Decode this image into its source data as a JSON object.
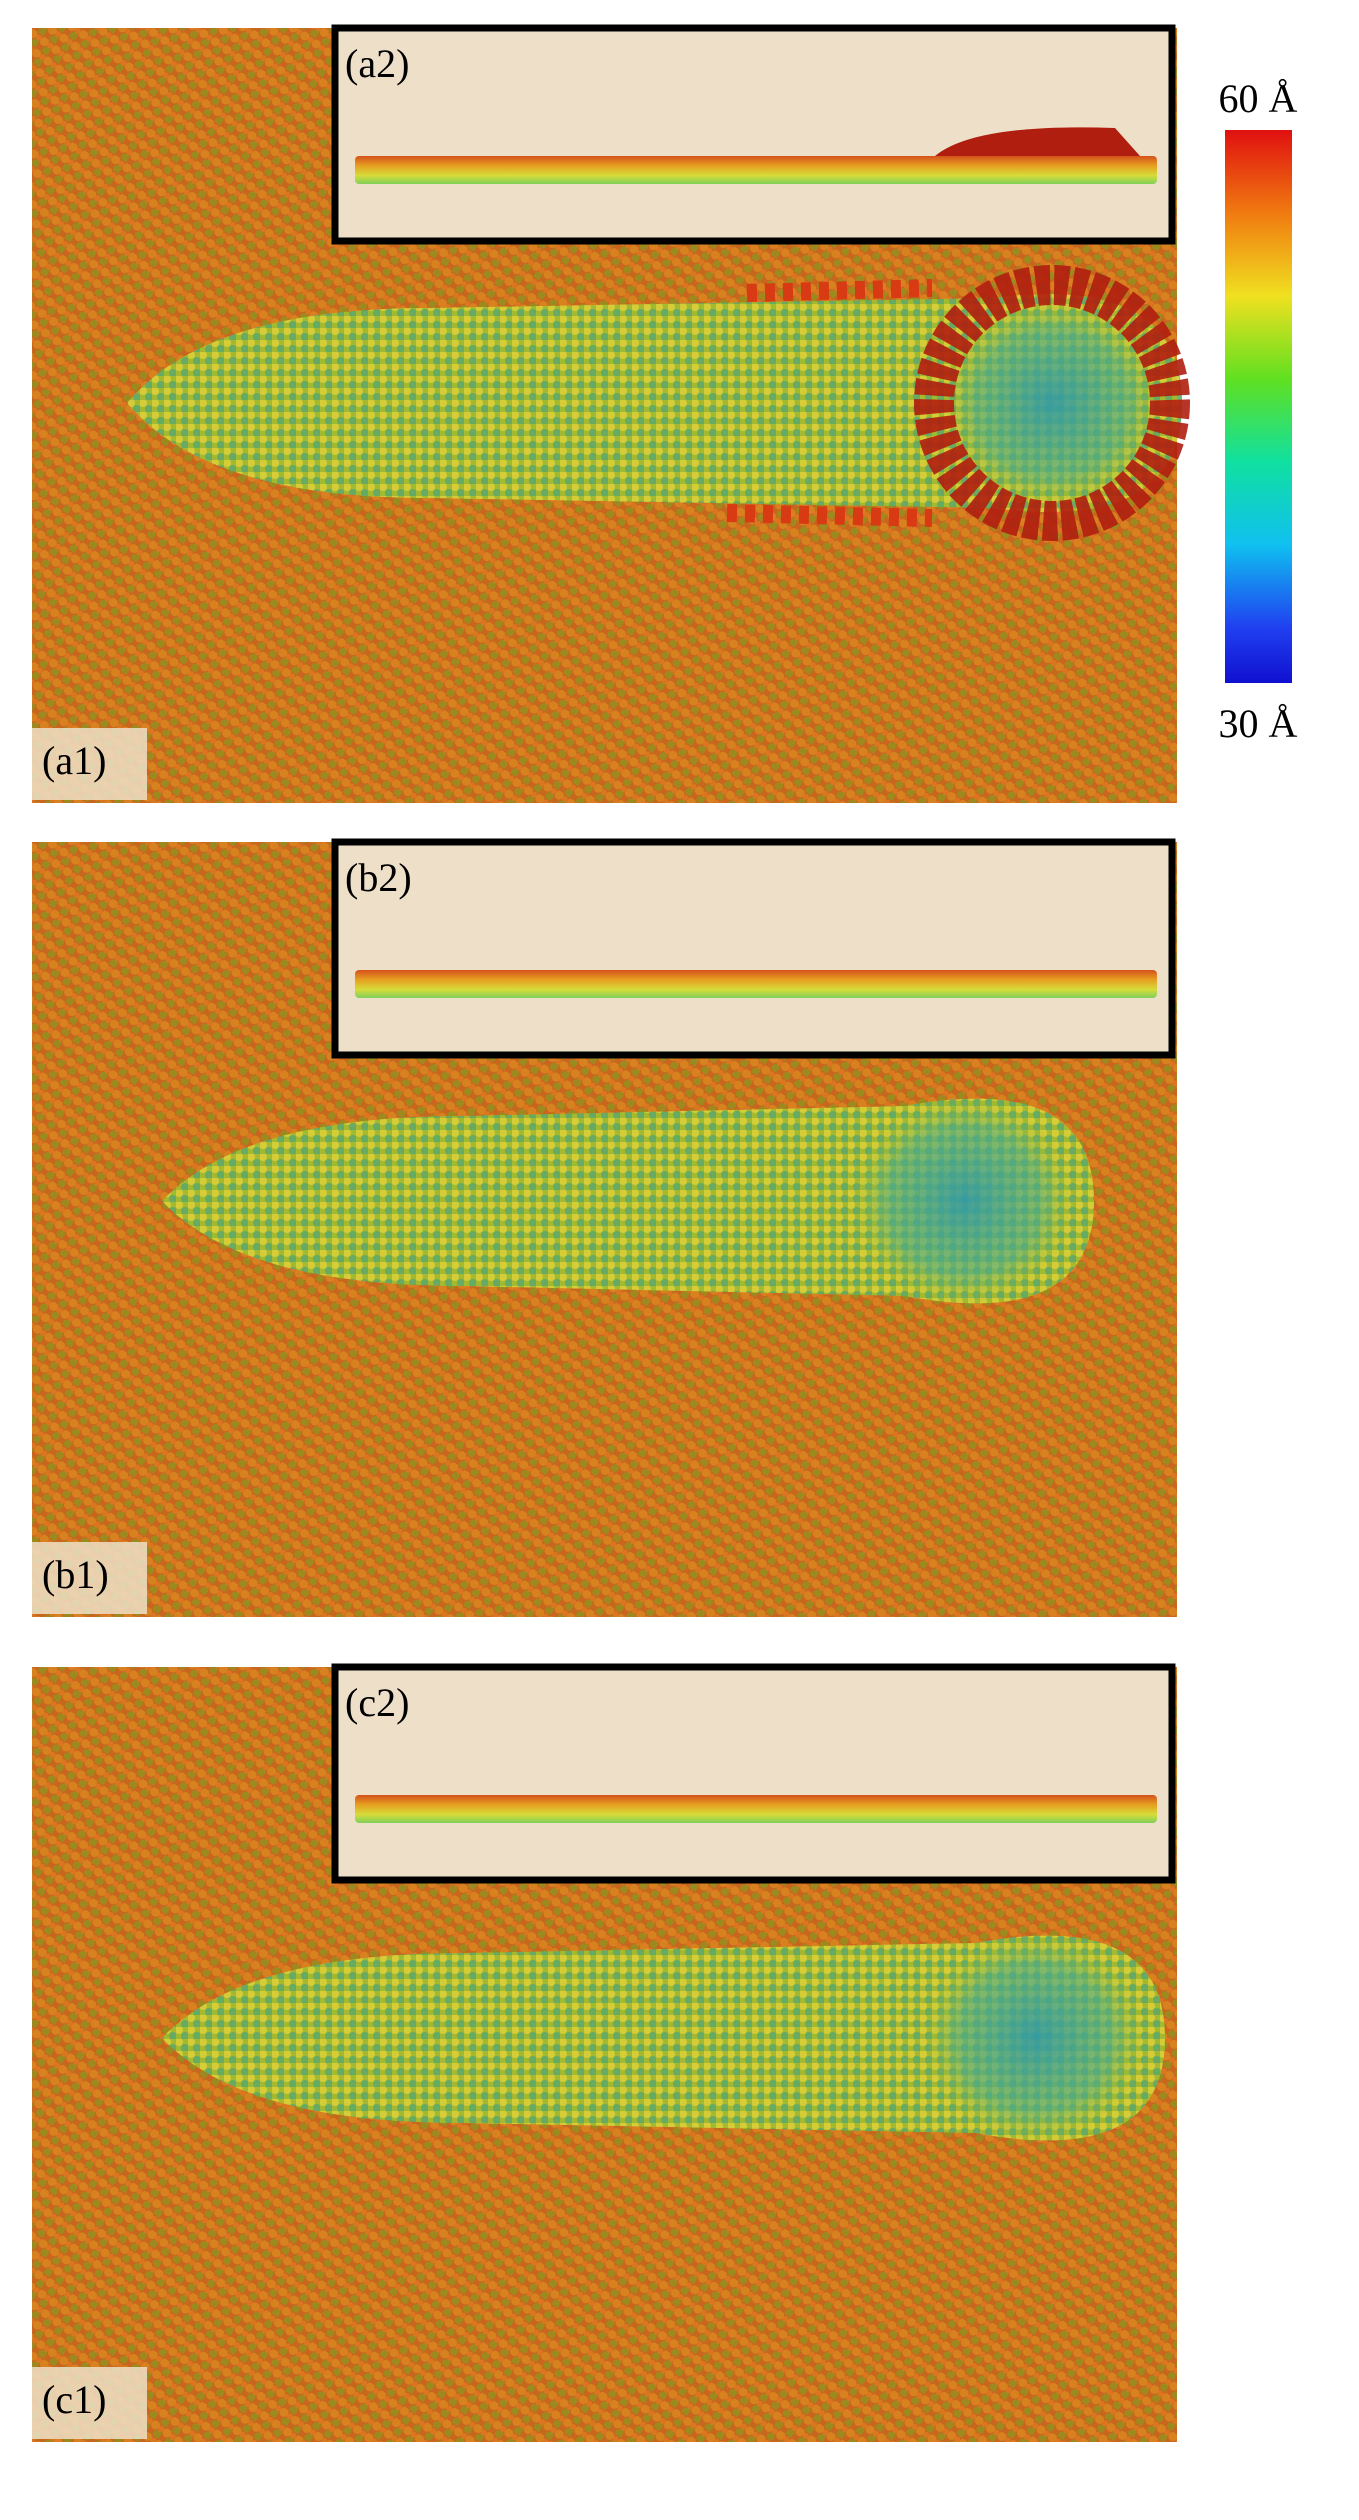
{
  "panels": [
    {
      "label": "(a1)",
      "inset_label": "(a2)"
    },
    {
      "label": "(b1)",
      "inset_label": "(b2)"
    },
    {
      "label": "(c1)",
      "inset_label": "(c2)"
    }
  ],
  "colorbar": {
    "top_label": "60 Å",
    "bottom_label": "30 Å"
  }
}
